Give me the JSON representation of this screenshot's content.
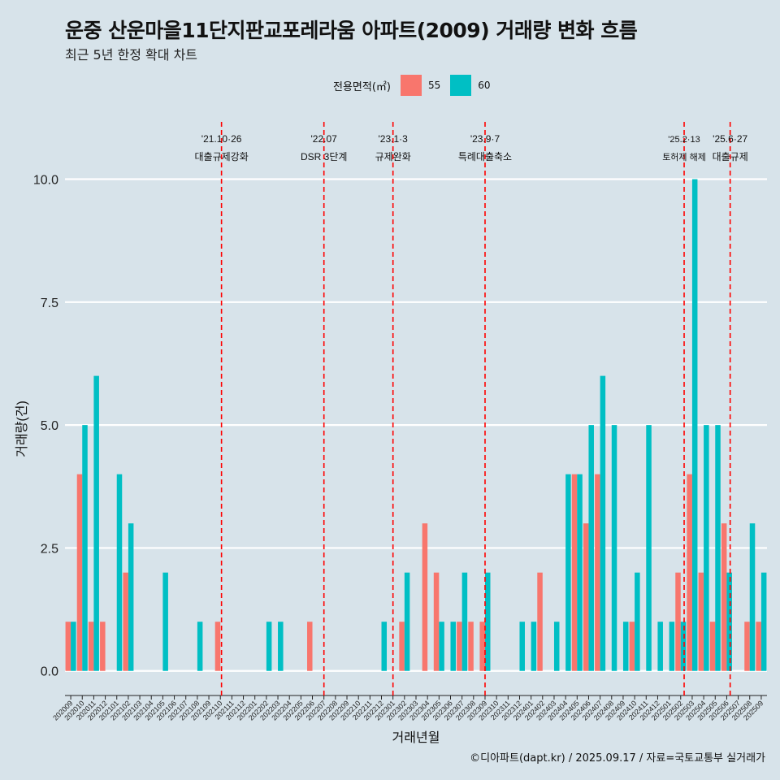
{
  "title": "운중 산운마을11단지판교포레라움 아파트(2009) 거래량 변화 흐름",
  "subtitle": "최근 5년 한정 확대 차트",
  "legend_title": "전용면적(㎡)",
  "caption": "©디아파트(dapt.kr) / 2025.09.17 / 자료=국토교통부 실거래가",
  "colors": {
    "s55": "#f8766d",
    "s60": "#00bfc4",
    "background": "#d7e3ea",
    "event_line": "#ff0000"
  },
  "chart_data": {
    "type": "bar",
    "xlabel": "거래년월",
    "ylabel": "거래량(건)",
    "ylim": [
      -0.5,
      11
    ],
    "yticks": [
      0.0,
      2.5,
      5.0,
      7.5,
      10.0
    ],
    "ytick_labels": [
      "0.0",
      "2.5",
      "5.0",
      "7.5",
      "10.0"
    ],
    "categories": [
      "202009",
      "202010",
      "202011",
      "202012",
      "202101",
      "202102",
      "202103",
      "202104",
      "202105",
      "202106",
      "202107",
      "202108",
      "202109",
      "202110",
      "202111",
      "202112",
      "202201",
      "202202",
      "202203",
      "202204",
      "202205",
      "202206",
      "202207",
      "202208",
      "202209",
      "202210",
      "202211",
      "202212",
      "202301",
      "202302",
      "202303",
      "202304",
      "202305",
      "202306",
      "202307",
      "202308",
      "202309",
      "202310",
      "202311",
      "202312",
      "202401",
      "202402",
      "202403",
      "202404",
      "202405",
      "202406",
      "202407",
      "202408",
      "202409",
      "202410",
      "202411",
      "202412",
      "202501",
      "202502",
      "202503",
      "202504",
      "202505",
      "202506",
      "202507",
      "202508",
      "202509"
    ],
    "series": [
      {
        "name": "55",
        "values": [
          1,
          4,
          1,
          1,
          0,
          2,
          0,
          0,
          0,
          0,
          0,
          0,
          0,
          1,
          0,
          0,
          0,
          0,
          0,
          0,
          0,
          1,
          0,
          0,
          0,
          0,
          0,
          0,
          0,
          1,
          0,
          3,
          2,
          0,
          1,
          1,
          1,
          0,
          0,
          0,
          0,
          2,
          0,
          0,
          4,
          3,
          4,
          0,
          0,
          1,
          0,
          0,
          0,
          2,
          4,
          2,
          1,
          3,
          0,
          1,
          1
        ]
      },
      {
        "name": "60",
        "values": [
          1,
          5,
          6,
          0,
          4,
          3,
          0,
          0,
          2,
          0,
          0,
          1,
          0,
          0,
          0,
          0,
          0,
          1,
          1,
          0,
          0,
          0,
          0,
          0,
          0,
          0,
          0,
          1,
          0,
          2,
          0,
          0,
          1,
          1,
          2,
          0,
          2,
          0,
          0,
          1,
          1,
          0,
          1,
          4,
          4,
          5,
          6,
          5,
          1,
          2,
          5,
          1,
          1,
          1,
          10,
          5,
          5,
          2,
          0,
          3,
          2
        ]
      }
    ],
    "events": [
      {
        "date": "'21.10·26",
        "label": "대출규제강화",
        "position": 13.6
      },
      {
        "date": "'22.07",
        "label": "DSR 3단계",
        "position": 22.5
      },
      {
        "date": "'23.1·3",
        "label": "규제완화",
        "position": 28.5
      },
      {
        "date": "'23.9·7",
        "label": "특례대출축소",
        "position": 36.5
      },
      {
        "date": "'25.2·13",
        "label": "토허제 해제",
        "position": 53.8
      },
      {
        "date": "'25.6·27",
        "label": "대출규제",
        "position": 57.8
      }
    ]
  }
}
